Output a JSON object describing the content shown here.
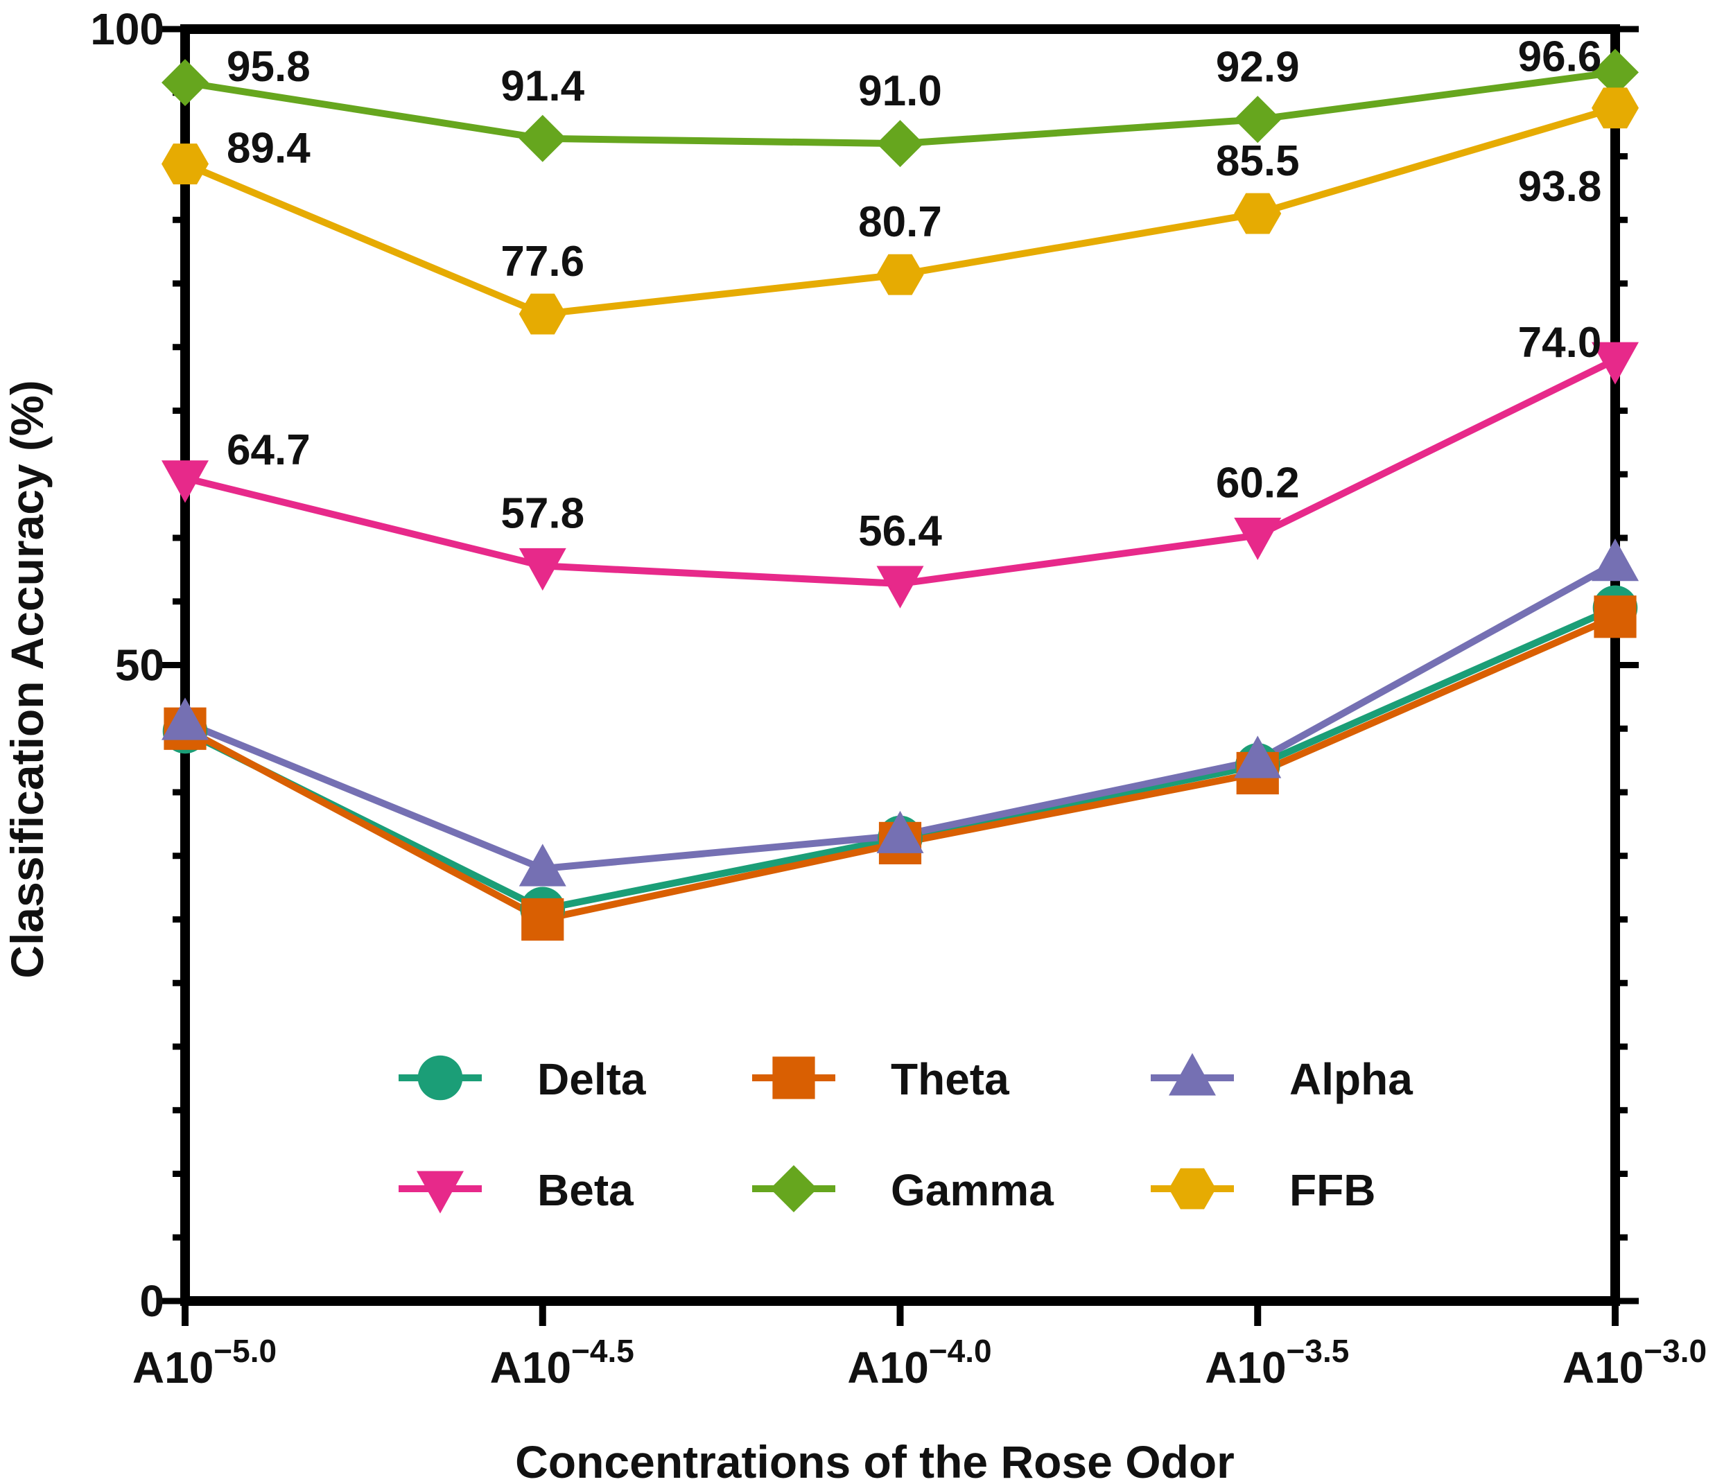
{
  "chart_data": {
    "type": "line",
    "title": "",
    "xlabel": "Concentrations of the Rose Odor",
    "ylabel": "Classification Accuracy (%)",
    "ylim": [
      0,
      100
    ],
    "yticks": [
      0,
      50,
      100
    ],
    "grid": false,
    "legend_position": "lower-center",
    "categories": [
      {
        "base": "A10",
        "exp": "−5.0"
      },
      {
        "base": "A10",
        "exp": "−4.5"
      },
      {
        "base": "A10",
        "exp": "−4.0"
      },
      {
        "base": "A10",
        "exp": "−3.5"
      },
      {
        "base": "A10",
        "exp": "−3.0"
      }
    ],
    "series": [
      {
        "name": "Delta",
        "color": "#1b9e77",
        "marker": "circle",
        "values": [
          44.8,
          30.8,
          36.4,
          42.1,
          54.5
        ],
        "labels": []
      },
      {
        "name": "Theta",
        "color": "#d95f02",
        "marker": "square",
        "values": [
          45.0,
          30.0,
          36.0,
          41.5,
          53.8
        ],
        "labels": []
      },
      {
        "name": "Alpha",
        "color": "#7570b3",
        "marker": "triangle-up",
        "values": [
          45.5,
          34.0,
          36.6,
          42.5,
          58.0
        ],
        "labels": []
      },
      {
        "name": "Beta",
        "color": "#e7298a",
        "marker": "triangle-down",
        "values": [
          64.7,
          57.8,
          56.4,
          60.2,
          74.0
        ],
        "labels": [
          "64.7",
          "57.8",
          "56.4",
          "60.2",
          "74.0"
        ]
      },
      {
        "name": "Gamma",
        "color": "#66a61e",
        "marker": "diamond",
        "values": [
          95.8,
          91.4,
          91.0,
          92.9,
          96.6
        ],
        "labels": [
          "95.8",
          "91.4",
          "91.0",
          "92.9",
          "96.6"
        ]
      },
      {
        "name": "FFB",
        "color": "#e6ab02",
        "marker": "hexagon",
        "values": [
          89.4,
          77.6,
          80.7,
          85.5,
          93.8
        ],
        "labels": [
          "89.4",
          "77.6",
          "80.7",
          "85.5",
          "93.8"
        ]
      }
    ]
  }
}
